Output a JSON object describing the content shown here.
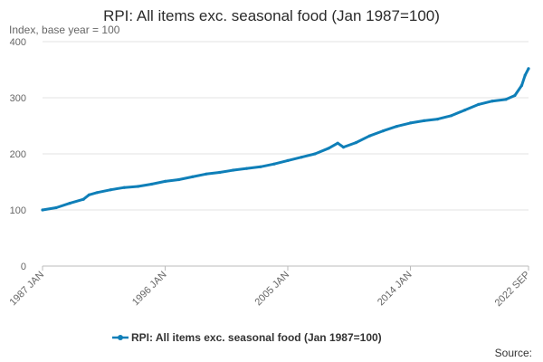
{
  "chart_data": {
    "type": "line",
    "title": "RPI: All items exc. seasonal food (Jan 1987=100)",
    "ylabel": "Index, base year = 100",
    "xlabel": "",
    "ylim": [
      0,
      400
    ],
    "y_ticks": [
      "0",
      "100",
      "200",
      "300",
      "400"
    ],
    "x_tick_labels": [
      "1987 JAN",
      "1996 JAN",
      "2005 JAN",
      "2014 JAN",
      "2022 SEP"
    ],
    "x_tick_dates": [
      "1987-01",
      "1996-01",
      "2005-01",
      "2014-01",
      "2022-09"
    ],
    "grid": true,
    "legend_position": "bottom",
    "series": [
      {
        "name": "RPI: All items exc. seasonal food (Jan 1987=100)",
        "color": "#0f7fb8",
        "points": [
          [
            "1987-01",
            100
          ],
          [
            "1988-01",
            104
          ],
          [
            "1989-01",
            112
          ],
          [
            "1990-01",
            119
          ],
          [
            "1990-06",
            127
          ],
          [
            "1991-01",
            131
          ],
          [
            "1992-01",
            136
          ],
          [
            "1993-01",
            140
          ],
          [
            "1994-01",
            142
          ],
          [
            "1995-01",
            146
          ],
          [
            "1996-01",
            151
          ],
          [
            "1997-01",
            154
          ],
          [
            "1998-01",
            159
          ],
          [
            "1999-01",
            164
          ],
          [
            "2000-01",
            167
          ],
          [
            "2001-01",
            171
          ],
          [
            "2002-01",
            174
          ],
          [
            "2003-01",
            177
          ],
          [
            "2004-01",
            182
          ],
          [
            "2005-01",
            188
          ],
          [
            "2006-01",
            194
          ],
          [
            "2007-01",
            200
          ],
          [
            "2008-01",
            210
          ],
          [
            "2008-09",
            219
          ],
          [
            "2009-02",
            212
          ],
          [
            "2010-01",
            220
          ],
          [
            "2011-01",
            232
          ],
          [
            "2012-01",
            241
          ],
          [
            "2013-01",
            249
          ],
          [
            "2014-01",
            255
          ],
          [
            "2015-01",
            259
          ],
          [
            "2016-01",
            262
          ],
          [
            "2017-01",
            268
          ],
          [
            "2018-01",
            278
          ],
          [
            "2019-01",
            288
          ],
          [
            "2020-01",
            294
          ],
          [
            "2021-01",
            297
          ],
          [
            "2021-09",
            304
          ],
          [
            "2022-03",
            322
          ],
          [
            "2022-06",
            340
          ],
          [
            "2022-09",
            352
          ]
        ]
      }
    ],
    "source_label": "Source:"
  }
}
